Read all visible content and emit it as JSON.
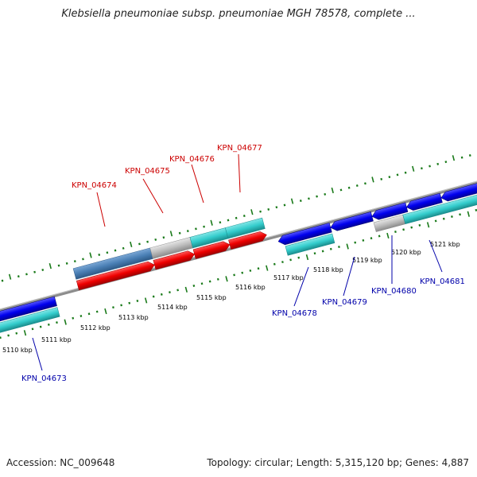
{
  "title": "Klebsiella pneumoniae subsp. pneumoniae MGH 78578, complete ...",
  "footer": {
    "accession": "Accession: NC_009648",
    "summary": "Topology: circular; Length: 5,315,120 bp; Genes: 4,887"
  },
  "colors": {
    "backbone": "#8c8c8c",
    "tick": "#1a7a1a",
    "forward_label": "#cc0000",
    "reverse_label": "#0000aa",
    "red": "#ee0000",
    "blue": "#0000ee",
    "cyan": "#33cccc",
    "steelblue": "#4a7fb5",
    "gray": "#bdbdbd"
  },
  "scale_labels": [
    "5110 kbp",
    "5111 kbp",
    "5112 kbp",
    "5113 kbp",
    "5114 kbp",
    "5115 kbp",
    "5116 kbp",
    "5117 kbp",
    "5118 kbp",
    "5119 kbp",
    "5120 kbp",
    "5121 kbp"
  ],
  "gene_labels": {
    "KPN_04673": "KPN_04673",
    "KPN_04674": "KPN_04674",
    "KPN_04675": "KPN_04675",
    "KPN_04676": "KPN_04676",
    "KPN_04677": "KPN_04677",
    "KPN_04678": "KPN_04678",
    "KPN_04679": "KPN_04679",
    "KPN_04680": "KPN_04680",
    "KPN_04681": "KPN_04681"
  }
}
